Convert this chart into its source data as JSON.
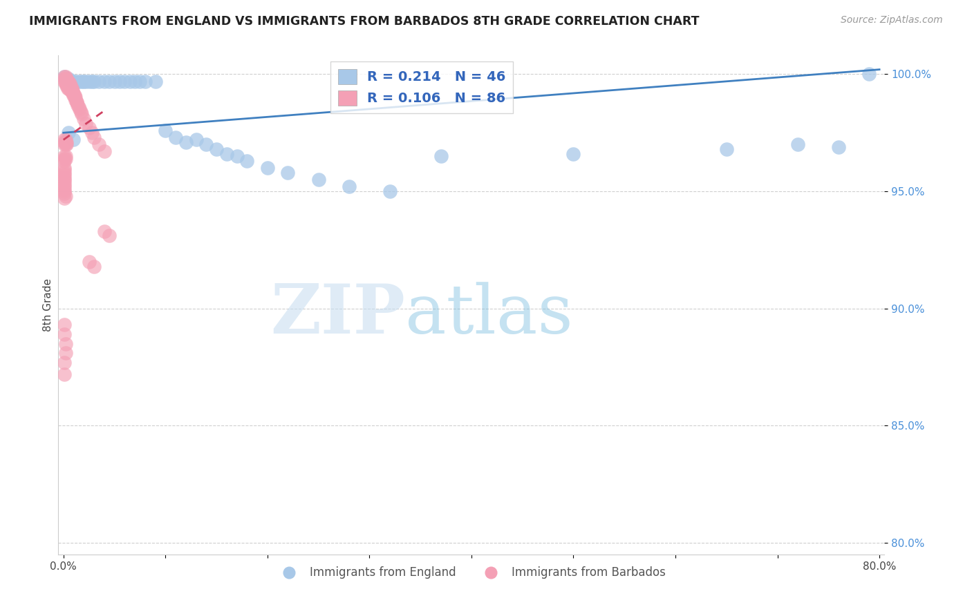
{
  "title": "IMMIGRANTS FROM ENGLAND VS IMMIGRANTS FROM BARBADOS 8TH GRADE CORRELATION CHART",
  "source": "Source: ZipAtlas.com",
  "ylabel": "8th Grade",
  "xlim": [
    -0.005,
    0.805
  ],
  "ylim": [
    0.795,
    1.008
  ],
  "xtick_positions": [
    0.0,
    0.1,
    0.2,
    0.3,
    0.4,
    0.5,
    0.6,
    0.7,
    0.8
  ],
  "xticklabels": [
    "0.0%",
    "",
    "",
    "",
    "",
    "",
    "",
    "",
    "80.0%"
  ],
  "ytick_positions": [
    0.8,
    0.85,
    0.9,
    0.95,
    1.0
  ],
  "ytick_labels": [
    "80.0%",
    "85.0%",
    "90.0%",
    "95.0%",
    "100.0%"
  ],
  "england_color": "#A8C8E8",
  "barbados_color": "#F4A0B5",
  "england_line_color": "#4080C0",
  "barbados_line_color": "#D04060",
  "england_R": 0.214,
  "england_N": 46,
  "barbados_R": 0.106,
  "barbados_N": 86,
  "watermark_zip": "ZIP",
  "watermark_atlas": "atlas",
  "england_x": [
    0.001,
    0.003,
    0.005,
    0.008,
    0.01,
    0.012,
    0.015,
    0.018,
    0.02,
    0.022,
    0.025,
    0.028,
    0.03,
    0.035,
    0.04,
    0.045,
    0.05,
    0.055,
    0.06,
    0.065,
    0.07,
    0.075,
    0.08,
    0.09,
    0.1,
    0.11,
    0.12,
    0.13,
    0.14,
    0.15,
    0.16,
    0.17,
    0.18,
    0.2,
    0.22,
    0.25,
    0.28,
    0.32,
    0.37,
    0.5,
    0.65,
    0.72,
    0.76,
    0.005,
    0.01,
    0.79
  ],
  "england_y": [
    0.999,
    0.998,
    0.998,
    0.997,
    0.997,
    0.997,
    0.997,
    0.997,
    0.997,
    0.997,
    0.997,
    0.997,
    0.997,
    0.997,
    0.997,
    0.997,
    0.997,
    0.997,
    0.997,
    0.997,
    0.997,
    0.997,
    0.997,
    0.997,
    0.976,
    0.973,
    0.971,
    0.972,
    0.97,
    0.968,
    0.966,
    0.965,
    0.963,
    0.96,
    0.958,
    0.955,
    0.952,
    0.95,
    0.965,
    0.966,
    0.968,
    0.97,
    0.969,
    0.975,
    0.972,
    1.0
  ],
  "barbados_x": [
    0.001,
    0.001,
    0.001,
    0.002,
    0.002,
    0.002,
    0.002,
    0.003,
    0.003,
    0.003,
    0.003,
    0.004,
    0.004,
    0.004,
    0.004,
    0.005,
    0.005,
    0.005,
    0.005,
    0.006,
    0.006,
    0.006,
    0.007,
    0.007,
    0.007,
    0.008,
    0.008,
    0.009,
    0.009,
    0.01,
    0.01,
    0.011,
    0.011,
    0.012,
    0.012,
    0.013,
    0.013,
    0.014,
    0.015,
    0.016,
    0.017,
    0.018,
    0.02,
    0.022,
    0.025,
    0.028,
    0.03,
    0.035,
    0.04,
    0.001,
    0.001,
    0.001,
    0.002,
    0.002,
    0.002,
    0.003,
    0.003,
    0.001,
    0.001,
    0.001,
    0.002,
    0.002,
    0.001,
    0.001,
    0.001,
    0.001,
    0.001,
    0.001,
    0.001,
    0.001,
    0.001,
    0.001,
    0.001,
    0.001,
    0.002,
    0.001,
    0.04,
    0.045,
    0.025,
    0.03,
    0.001,
    0.001,
    0.002,
    0.002,
    0.001,
    0.001
  ],
  "barbados_y": [
    0.999,
    0.998,
    0.997,
    0.999,
    0.998,
    0.997,
    0.996,
    0.998,
    0.997,
    0.996,
    0.995,
    0.997,
    0.996,
    0.995,
    0.994,
    0.997,
    0.996,
    0.995,
    0.994,
    0.996,
    0.995,
    0.994,
    0.995,
    0.994,
    0.993,
    0.994,
    0.993,
    0.993,
    0.992,
    0.992,
    0.991,
    0.991,
    0.99,
    0.99,
    0.989,
    0.988,
    0.988,
    0.987,
    0.986,
    0.985,
    0.984,
    0.983,
    0.981,
    0.979,
    0.977,
    0.975,
    0.973,
    0.97,
    0.967,
    0.972,
    0.971,
    0.97,
    0.972,
    0.971,
    0.97,
    0.971,
    0.97,
    0.965,
    0.964,
    0.963,
    0.965,
    0.964,
    0.96,
    0.959,
    0.958,
    0.957,
    0.956,
    0.955,
    0.954,
    0.953,
    0.952,
    0.951,
    0.95,
    0.949,
    0.948,
    0.947,
    0.933,
    0.931,
    0.92,
    0.918,
    0.893,
    0.889,
    0.885,
    0.881,
    0.877,
    0.872
  ]
}
